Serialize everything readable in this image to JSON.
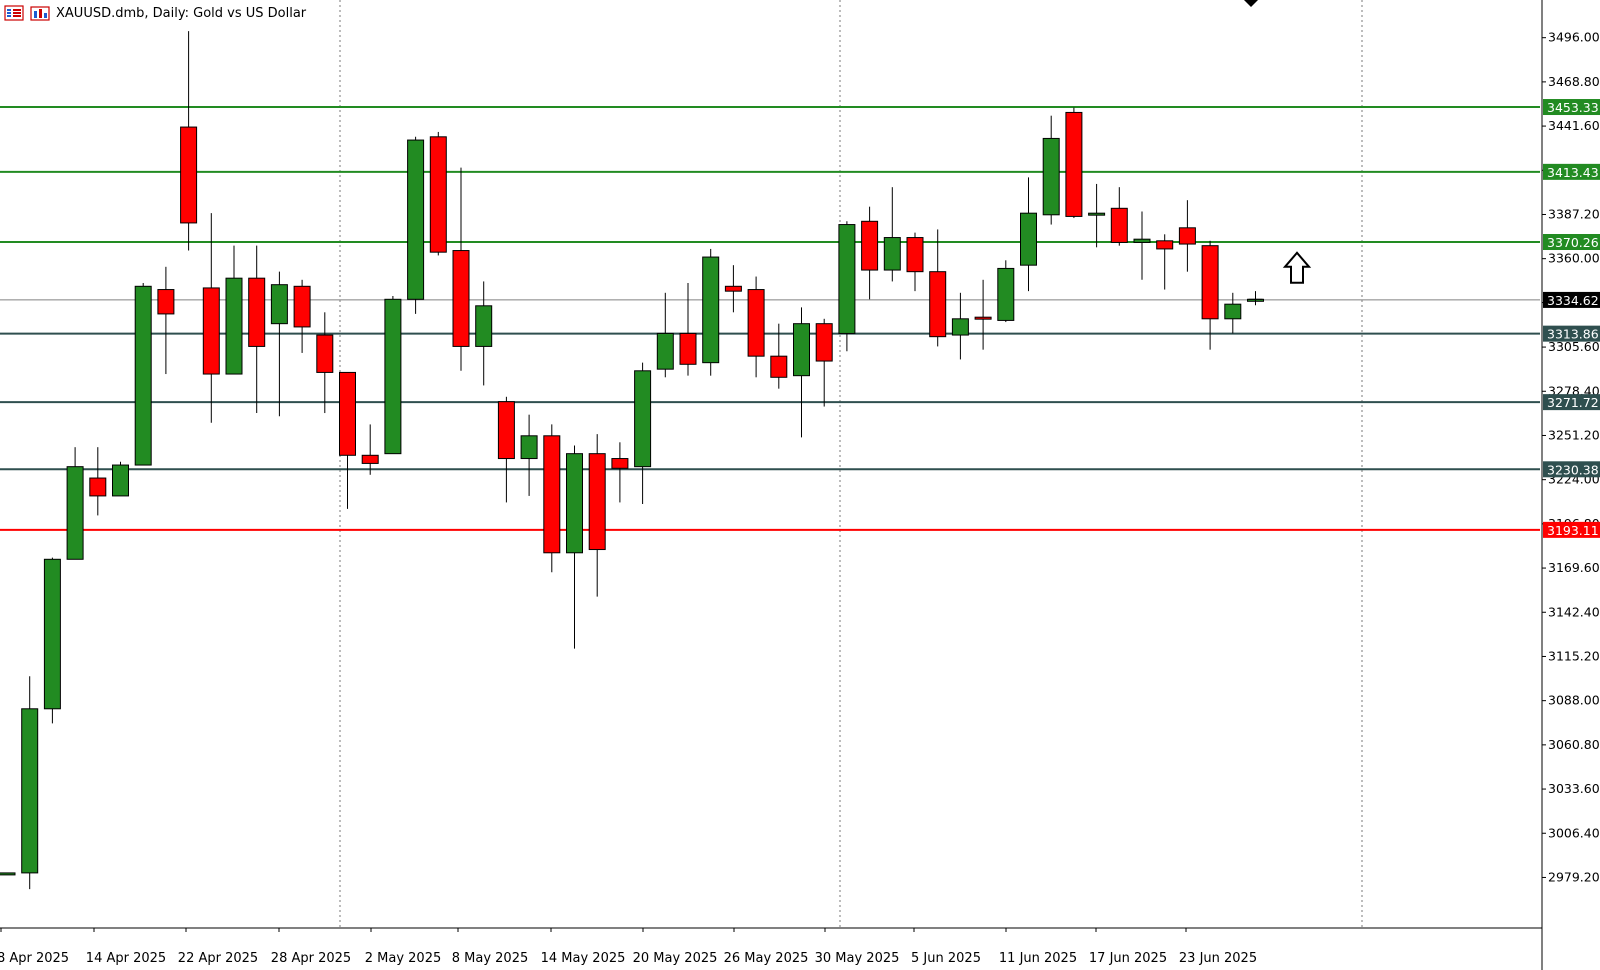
{
  "window": {
    "title": "XAUUSD.dmb, Daily:  Gold vs US Dollar"
  },
  "icons": {
    "menu": "chart-menu-icon",
    "chart": "bar-chart-icon",
    "arrow": "arrow-up-icon"
  },
  "colors": {
    "bull": "#228b22",
    "bear": "#ff0000",
    "support": "#2f4f4f",
    "resistance": "#228b22",
    "key": "#ff0000",
    "current": "#000000",
    "axis_text": "#000000"
  },
  "chart_data": {
    "type": "candlestick",
    "symbol": "XAUUSD.dmb",
    "timeframe": "Daily",
    "description": "Gold vs US Dollar",
    "ylim": [
      2952.4,
      3523.5
    ],
    "yticks": [
      2979.2,
      3006.4,
      3033.6,
      3060.8,
      3088.0,
      3115.2,
      3142.4,
      3169.6,
      3196.8,
      3224.0,
      3251.2,
      3278.4,
      3305.6,
      3333.0,
      3360.0,
      3387.2,
      3414.4,
      3441.6,
      3468.8,
      3496.0
    ],
    "ytick_labels": [
      "2979.20",
      "3006.40",
      "3033.60",
      "3060.80",
      "3088.00",
      "3115.20",
      "3142.40",
      "3169.60",
      "3196.80",
      "3224.00",
      "3251.20",
      "3278.40",
      "3305.60",
      "3333.00",
      "3360.00",
      "3387.20",
      "3414.40",
      "3441.60",
      "3468.80",
      "3496.00"
    ],
    "xtick_labels": [
      "8 Apr 2025",
      "14 Apr 2025",
      "22 Apr 2025",
      "28 Apr 2025",
      "2 May 2025",
      "8 May 2025",
      "14 May 2025",
      "20 May 2025",
      "26 May 2025",
      "30 May 2025",
      "5 Jun 2025",
      "11 Jun 2025",
      "17 Jun 2025",
      "23 Jun 2025"
    ],
    "candles": [
      {
        "o": 2982,
        "h": 2982,
        "l": 2982,
        "c": 2982
      },
      {
        "o": 2982,
        "h": 3103,
        "l": 2972,
        "c": 3083
      },
      {
        "o": 3083,
        "h": 3176,
        "l": 3074,
        "c": 3175
      },
      {
        "o": 3175,
        "h": 3244,
        "l": 3175,
        "c": 3232
      },
      {
        "o": 3225,
        "h": 3244,
        "l": 3202,
        "c": 3214
      },
      {
        "o": 3214,
        "h": 3235,
        "l": 3214,
        "c": 3233
      },
      {
        "o": 3233,
        "h": 3345,
        "l": 3233,
        "c": 3343
      },
      {
        "o": 3341,
        "h": 3355,
        "l": 3289,
        "c": 3326
      },
      {
        "o": 3441,
        "h": 3500,
        "l": 3365,
        "c": 3382
      },
      {
        "o": 3342,
        "h": 3388,
        "l": 3259,
        "c": 3289
      },
      {
        "o": 3289,
        "h": 3368,
        "l": 3289,
        "c": 3348
      },
      {
        "o": 3348,
        "h": 3368,
        "l": 3265,
        "c": 3306
      },
      {
        "o": 3320,
        "h": 3352,
        "l": 3263,
        "c": 3344
      },
      {
        "o": 3343,
        "h": 3347,
        "l": 3302,
        "c": 3318
      },
      {
        "o": 3313,
        "h": 3327,
        "l": 3265,
        "c": 3290
      },
      {
        "o": 3290,
        "h": 3290,
        "l": 3206,
        "c": 3239
      },
      {
        "o": 3239,
        "h": 3258,
        "l": 3227,
        "c": 3234
      },
      {
        "o": 3240,
        "h": 3337,
        "l": 3240,
        "c": 3335
      },
      {
        "o": 3335,
        "h": 3435,
        "l": 3326,
        "c": 3433
      },
      {
        "o": 3435,
        "h": 3438,
        "l": 3362,
        "c": 3364
      },
      {
        "o": 3365,
        "h": 3416,
        "l": 3291,
        "c": 3306
      },
      {
        "o": 3306,
        "h": 3346,
        "l": 3282,
        "c": 3331
      },
      {
        "o": 3272,
        "h": 3275,
        "l": 3210,
        "c": 3237
      },
      {
        "o": 3237,
        "h": 3264,
        "l": 3214,
        "c": 3251
      },
      {
        "o": 3251,
        "h": 3258,
        "l": 3167,
        "c": 3179
      },
      {
        "o": 3179,
        "h": 3245,
        "l": 3120,
        "c": 3240
      },
      {
        "o": 3240,
        "h": 3252,
        "l": 3152,
        "c": 3181
      },
      {
        "o": 3237,
        "h": 3247,
        "l": 3210,
        "c": 3231
      },
      {
        "o": 3232,
        "h": 3296,
        "l": 3209,
        "c": 3291
      },
      {
        "o": 3292,
        "h": 3339,
        "l": 3287,
        "c": 3314
      },
      {
        "o": 3314,
        "h": 3345,
        "l": 3288,
        "c": 3295
      },
      {
        "o": 3296,
        "h": 3366,
        "l": 3288,
        "c": 3361
      },
      {
        "o": 3343,
        "h": 3356,
        "l": 3327,
        "c": 3340
      },
      {
        "o": 3341,
        "h": 3349,
        "l": 3287,
        "c": 3300
      },
      {
        "o": 3300,
        "h": 3320,
        "l": 3280,
        "c": 3287
      },
      {
        "o": 3288,
        "h": 3330,
        "l": 3250,
        "c": 3320
      },
      {
        "o": 3320,
        "h": 3323,
        "l": 3269,
        "c": 3297
      },
      {
        "o": 3314,
        "h": 3383,
        "l": 3303,
        "c": 3381
      },
      {
        "o": 3383,
        "h": 3392,
        "l": 3335,
        "c": 3353
      },
      {
        "o": 3353,
        "h": 3404,
        "l": 3346,
        "c": 3373
      },
      {
        "o": 3373,
        "h": 3376,
        "l": 3340,
        "c": 3352
      },
      {
        "o": 3352,
        "h": 3378,
        "l": 3306,
        "c": 3312
      },
      {
        "o": 3313,
        "h": 3339,
        "l": 3298,
        "c": 3323
      },
      {
        "o": 3324,
        "h": 3347,
        "l": 3304,
        "c": 3323
      },
      {
        "o": 3322,
        "h": 3359,
        "l": 3321,
        "c": 3354
      },
      {
        "o": 3356,
        "h": 3410,
        "l": 3340,
        "c": 3388
      },
      {
        "o": 3387,
        "h": 3448,
        "l": 3381,
        "c": 3434
      },
      {
        "o": 3450,
        "h": 3453,
        "l": 3385,
        "c": 3386
      },
      {
        "o": 3388,
        "h": 3406,
        "l": 3367,
        "c": 3388
      },
      {
        "o": 3391,
        "h": 3404,
        "l": 3368,
        "c": 3370
      },
      {
        "o": 3370,
        "h": 3389,
        "l": 3347,
        "c": 3372
      },
      {
        "o": 3371,
        "h": 3375,
        "l": 3341,
        "c": 3366
      },
      {
        "o": 3379,
        "h": 3396,
        "l": 3352,
        "c": 3369
      },
      {
        "o": 3368,
        "h": 3371,
        "l": 3304,
        "c": 3323
      },
      {
        "o": 3323,
        "h": 3339,
        "l": 3314,
        "c": 3332
      },
      {
        "o": 3334,
        "h": 3340,
        "l": 3332,
        "c": 3335
      }
    ],
    "levels": [
      {
        "value": 3453.33,
        "label": "3453.33",
        "role": "resistance"
      },
      {
        "value": 3413.43,
        "label": "3413.43",
        "role": "resistance"
      },
      {
        "value": 3370.26,
        "label": "3370.26",
        "role": "resistance"
      },
      {
        "value": 3334.62,
        "label": "3334.62",
        "role": "current"
      },
      {
        "value": 3313.86,
        "label": "3313.86",
        "role": "support"
      },
      {
        "value": 3271.72,
        "label": "3271.72",
        "role": "support"
      },
      {
        "value": 3230.38,
        "label": "3230.38",
        "role": "support"
      },
      {
        "value": 3193.11,
        "label": "3193.11",
        "role": "key"
      }
    ],
    "grid": "vertical-dotted",
    "annotation": {
      "type": "arrow-up",
      "value": 3355
    }
  }
}
